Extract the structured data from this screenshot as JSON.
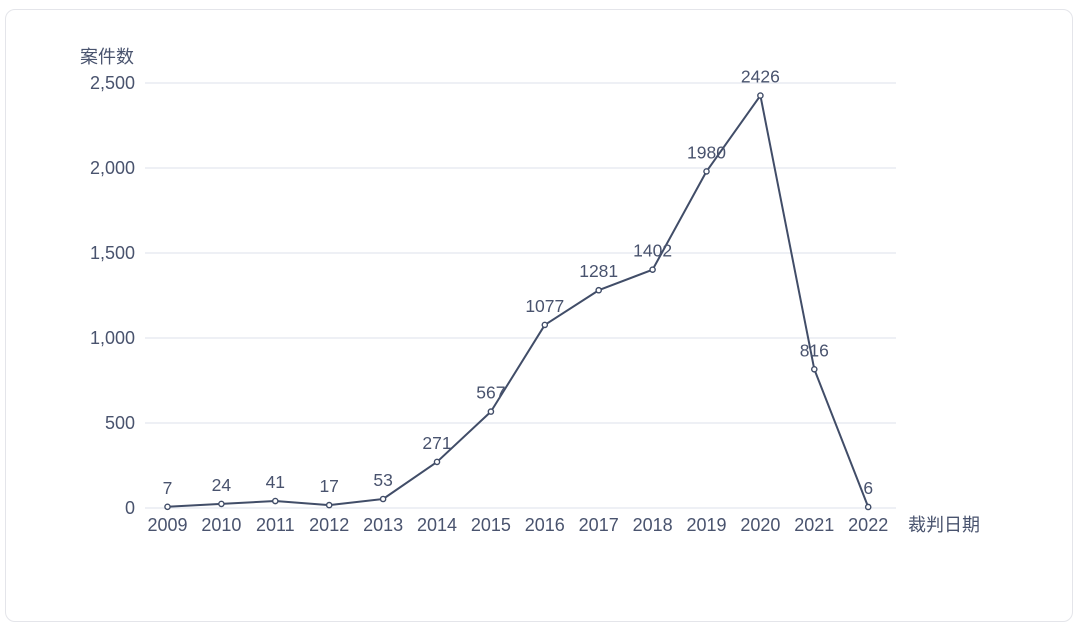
{
  "chart_data": {
    "type": "line",
    "title": "",
    "ylabel": "案件数",
    "xlabel": "裁判日期",
    "categories": [
      "2009",
      "2010",
      "2011",
      "2012",
      "2013",
      "2014",
      "2015",
      "2016",
      "2017",
      "2018",
      "2019",
      "2020",
      "2021",
      "2022"
    ],
    "values": [
      7,
      24,
      41,
      17,
      53,
      271,
      567,
      1077,
      1281,
      1402,
      1980,
      2426,
      816,
      6
    ],
    "data_labels": [
      "7",
      "24",
      "41",
      "17",
      "53",
      "271",
      "567",
      "1077",
      "1281",
      "1402",
      "1980",
      "2426",
      "816",
      "6"
    ],
    "y_ticks": [
      {
        "value": 0,
        "label": "0"
      },
      {
        "value": 500,
        "label": "500"
      },
      {
        "value": 1000,
        "label": "1,000"
      },
      {
        "value": 1500,
        "label": "1,500"
      },
      {
        "value": 2000,
        "label": "2,000"
      },
      {
        "value": 2500,
        "label": "2,500"
      }
    ],
    "ylim": [
      0,
      2500
    ],
    "grid": "horizontal",
    "legend": "none",
    "colors": {
      "line": "#414d68",
      "marker_fill": "#ffffff",
      "marker_stroke": "#414d68",
      "text": "#49536e",
      "grid": "#e9ecf2",
      "card_border": "#e4e5ea"
    }
  }
}
